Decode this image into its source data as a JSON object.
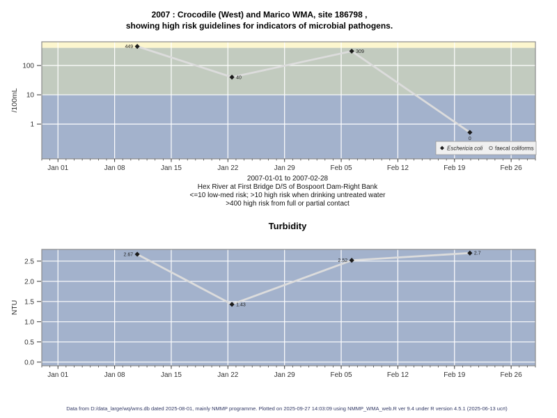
{
  "page": {
    "title_line1": "2007 : Crocodile (West) and Marico WMA, site 186798 ,",
    "title_line2": "showing high risk guidelines for indicators of microbial pathogens.",
    "caption_lines": [
      "2007-01-01 to 2007-02-28",
      "Hex River at First Bridge D/S of Bospoort Dam-Right Bank",
      "<=10 low-med risk; >10 high risk when drinking untreated water",
      ">400 high risk from full or partial contact"
    ],
    "turbidity_title": "Turbidity",
    "footer": "Data from D:/data_large/wq/wms.db dated 2025-08-01, mainly NMMP programme. Plotted on 2025-09-27 14:03:09 using NMMP_WMA_web.R ver 9.4 under R version 4.5.1 (2025-06-13 ucrt)"
  },
  "colors": {
    "band_high_contact": "#fcf6ce",
    "band_high_drinking": "#c2cbbf",
    "band_low_med": "#a3b2cc",
    "gridline": "#ffffff",
    "plot_border": "#8a8a8a",
    "series_line": "#dcdcdc",
    "marker": "#1a1a1a",
    "axis_text": "#333333",
    "point_label": "#222222",
    "legend_bg": "#f0f0f0",
    "footer_text": "#333a66"
  },
  "chart_data": [
    {
      "type": "line",
      "name": "microbial-pathogens",
      "ylabel": "/100mL",
      "y_scale": "log10",
      "y_domain": [
        0.065,
        645
      ],
      "y_ticks": [
        1,
        10,
        100
      ],
      "y_tick_labels": [
        "1",
        "10",
        "100"
      ],
      "x_tick_labels": [
        "Jan 01",
        "Jan 08",
        "Jan 15",
        "Jan 22",
        "Jan 29",
        "Feb 05",
        "Feb 12",
        "Feb 19",
        "Feb 26"
      ],
      "x_tick_day_offsets": [
        0,
        7,
        14,
        21,
        28,
        35,
        42,
        49,
        56
      ],
      "x_domain_day_offsets": [
        -2,
        59
      ],
      "grid": true,
      "risk_bands": [
        {
          "name": "high-risk-contact",
          "from": 400,
          "to": 645,
          "color": "#fcf6ce",
          "meaning": ">400 high risk from full or partial contact"
        },
        {
          "name": "high-risk-drinking",
          "from": 10,
          "to": 400,
          "color": "#c2cbbf",
          "meaning": ">10 high risk when drinking untreated water"
        },
        {
          "name": "low-med-risk",
          "from": 0.065,
          "to": 10,
          "color": "#a3b2cc",
          "meaning": "<=10 low-med risk"
        }
      ],
      "series": [
        {
          "name": "Eschericia coli",
          "marker": "filled-diamond",
          "points": [
            {
              "day": 9.8,
              "value": 449,
              "label": "449",
              "label_side": "left"
            },
            {
              "day": 21.5,
              "value": 40,
              "label": "40",
              "label_side": "right"
            },
            {
              "day": 36.3,
              "value": 309,
              "label": "309",
              "label_side": "right"
            },
            {
              "day": 50.9,
              "value": 0,
              "label": "0",
              "label_side": "below",
              "plot_value": 0.52
            }
          ]
        },
        {
          "name": "faecal coliforms",
          "marker": "open-circle",
          "points": []
        }
      ],
      "legend": {
        "position": "bottom-right",
        "entries": [
          {
            "label": "Eschericia coli",
            "italic": true,
            "marker": "filled-diamond"
          },
          {
            "label": "faecal coliforms",
            "italic": false,
            "marker": "open-circle"
          }
        ]
      }
    },
    {
      "type": "line",
      "name": "turbidity",
      "title": "Turbidity",
      "ylabel": "NTU",
      "y_scale": "linear",
      "y_domain": [
        -0.09,
        2.79
      ],
      "y_ticks": [
        0.0,
        0.5,
        1.0,
        1.5,
        2.0,
        2.5
      ],
      "y_tick_labels": [
        "0.0",
        "0.5",
        "1.0",
        "1.5",
        "2.0",
        "2.5"
      ],
      "x_tick_labels": [
        "Jan 01",
        "Jan 08",
        "Jan 15",
        "Jan 22",
        "Jan 29",
        "Feb 05",
        "Feb 12",
        "Feb 19",
        "Feb 26"
      ],
      "x_tick_day_offsets": [
        0,
        7,
        14,
        21,
        28,
        35,
        42,
        49,
        56
      ],
      "x_domain_day_offsets": [
        -2,
        59
      ],
      "grid": true,
      "background_color": "#a3b2cc",
      "series": [
        {
          "name": "Turbidity",
          "marker": "filled-diamond",
          "points": [
            {
              "day": 9.8,
              "value": 2.67,
              "label": "2.67",
              "label_side": "left"
            },
            {
              "day": 21.5,
              "value": 1.43,
              "label": "1.43",
              "label_side": "right"
            },
            {
              "day": 36.3,
              "value": 2.52,
              "label": "2.52",
              "label_side": "left"
            },
            {
              "day": 50.9,
              "value": 2.7,
              "label": "2.7",
              "label_side": "right"
            }
          ]
        }
      ]
    }
  ]
}
